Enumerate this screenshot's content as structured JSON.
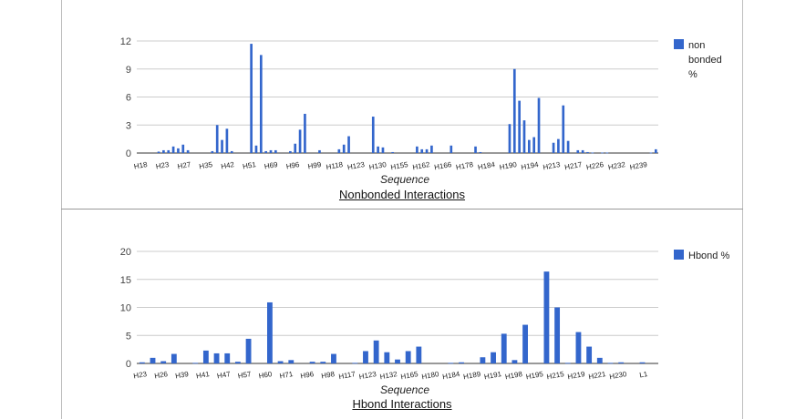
{
  "colors": {
    "bar": "#3366cc",
    "grid": "#cccccc",
    "axis": "#333333"
  },
  "chart_data": [
    {
      "type": "bar",
      "title": "Nonbonded Interactions",
      "xlabel": "Sequence",
      "ylabel": "",
      "ylim": [
        0,
        12
      ],
      "yticks": [
        0,
        3,
        6,
        9,
        12
      ],
      "legend": "top-right",
      "x_tick_labels": [
        "H18",
        "H23",
        "H27",
        "H35",
        "H42",
        "H51",
        "H69",
        "H96",
        "H99",
        "H118",
        "H123",
        "H130",
        "H155",
        "H162",
        "H166",
        "H178",
        "H184",
        "H190",
        "H194",
        "H213",
        "H217",
        "H226",
        "H232",
        "H239"
      ],
      "series": [
        {
          "name": "non bonded %",
          "values": [
            0,
            0,
            0,
            0,
            0.15,
            0.3,
            0.3,
            0.7,
            0.5,
            0.9,
            0.3,
            0,
            0,
            0,
            0,
            0.2,
            3.0,
            1.4,
            2.6,
            0.2,
            0,
            0,
            0,
            11.7,
            0.8,
            10.5,
            0.2,
            0.3,
            0.3,
            0,
            0,
            0.2,
            1.0,
            2.5,
            4.2,
            0,
            0,
            0.3,
            0,
            0,
            0,
            0.4,
            0.9,
            1.8,
            0,
            0,
            0,
            0,
            3.9,
            0.7,
            0.6,
            0,
            0.1,
            0,
            0,
            0,
            0,
            0.7,
            0.4,
            0.4,
            0.8,
            0,
            0,
            0,
            0.8,
            0,
            0,
            0,
            0,
            0.7,
            0.1,
            0,
            0,
            0,
            0,
            0,
            3.1,
            9.0,
            5.6,
            3.5,
            1.4,
            1.7,
            5.9,
            0,
            0,
            1.1,
            1.5,
            5.1,
            1.3,
            0,
            0.3,
            0.3,
            0.1,
            0.05,
            0,
            0.05,
            0.05,
            0,
            0,
            0,
            0,
            0,
            0,
            0,
            0,
            0.05,
            0.4
          ]
        }
      ]
    },
    {
      "type": "bar",
      "title": "Hbond Interactions",
      "xlabel": "Sequence",
      "ylabel": "",
      "ylim": [
        0,
        20
      ],
      "yticks": [
        0,
        5,
        10,
        15,
        20
      ],
      "legend": "top-right",
      "x_tick_labels": [
        "H23",
        "H26",
        "H39",
        "H41",
        "H47",
        "H57",
        "H60",
        "H71",
        "H96",
        "H98",
        "H117",
        "H123",
        "H132",
        "H165",
        "H180",
        "H184",
        "H189",
        "H191",
        "H198",
        "H195",
        "H215",
        "H219",
        "H221",
        "H230",
        "L1"
      ],
      "series": [
        {
          "name": "Hbond %",
          "values": [
            0.2,
            1.0,
            0.4,
            1.7,
            0,
            0.1,
            2.3,
            1.8,
            1.8,
            0.3,
            4.4,
            0,
            10.9,
            0.4,
            0.6,
            0,
            0.3,
            0.3,
            1.7,
            0,
            0.1,
            2.2,
            4.1,
            2.0,
            0.7,
            2.2,
            3.0,
            0,
            0,
            0.1,
            0.2,
            0,
            1.1,
            2.0,
            5.3,
            0.6,
            6.9,
            0,
            16.4,
            10.0,
            0.1,
            5.6,
            3.0,
            1.0,
            0.1,
            0.2,
            0,
            0.2,
            0
          ]
        }
      ]
    }
  ]
}
